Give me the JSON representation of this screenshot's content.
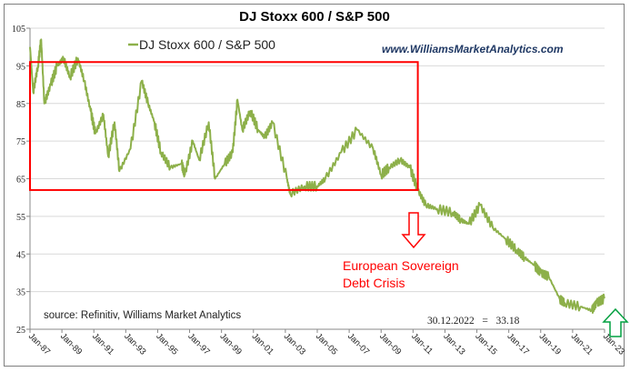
{
  "chart_data": {
    "type": "line",
    "title": "DJ Stoxx 600 / S&P 500",
    "xlabel": "",
    "ylabel": "",
    "ylim": [
      25,
      105
    ],
    "xlim": [
      1987.0,
      2023.0
    ],
    "grid": true,
    "legend": {
      "position": "top-left",
      "entries": [
        "DJ Stoxx 600 / S&P 500"
      ]
    },
    "yticks": [
      25,
      35,
      45,
      55,
      65,
      75,
      85,
      95,
      105
    ],
    "xticks": [
      {
        "label": "Jan-87",
        "value": 1987
      },
      {
        "label": "Jan-89",
        "value": 1989
      },
      {
        "label": "Jan-91",
        "value": 1991
      },
      {
        "label": "Jan-93",
        "value": 1993
      },
      {
        "label": "Jan-95",
        "value": 1995
      },
      {
        "label": "Jan-97",
        "value": 1997
      },
      {
        "label": "Jan-99",
        "value": 1999
      },
      {
        "label": "Jan-01",
        "value": 2001
      },
      {
        "label": "Jan-03",
        "value": 2003
      },
      {
        "label": "Jan-05",
        "value": 2005
      },
      {
        "label": "Jan-07",
        "value": 2007
      },
      {
        "label": "Jan-09",
        "value": 2009
      },
      {
        "label": "Jan-11",
        "value": 2011
      },
      {
        "label": "Jan-13",
        "value": 2013
      },
      {
        "label": "Jan-15",
        "value": 2015
      },
      {
        "label": "Jan-17",
        "value": 2017
      },
      {
        "label": "Jan-19",
        "value": 2019
      },
      {
        "label": "Jan-21",
        "value": 2021
      },
      {
        "label": "Jan-23",
        "value": 2023
      }
    ],
    "series": [
      {
        "name": "DJ Stoxx 600 / S&P 500",
        "color": "#8db04a",
        "x": [
          1987.0,
          1987.2,
          1987.5,
          1987.7,
          1987.9,
          1988.3,
          1988.7,
          1989.1,
          1989.5,
          1990.0,
          1990.4,
          1990.8,
          1991.1,
          1991.6,
          1991.9,
          1992.3,
          1992.6,
          1993.3,
          1994.0,
          1994.4,
          1994.8,
          1995.2,
          1995.8,
          1996.5,
          1996.7,
          1997.2,
          1997.6,
          1998.2,
          1998.6,
          1999.2,
          1999.7,
          2000.0,
          2000.3,
          2000.8,
          2001.3,
          2001.7,
          2002.2,
          2003.1,
          2003.3,
          2004.2,
          2005.0,
          2005.5,
          2006.5,
          2007.5,
          2008.5,
          2009.0,
          2009.5,
          2010.2,
          2010.8,
          2011.3,
          2011.8,
          2012.5,
          2013.5,
          2014.0,
          2014.5,
          2015.2,
          2016.0,
          2016.8,
          2017.5,
          2018.0,
          2018.6,
          2019.0,
          2019.5,
          2020.2,
          2020.5,
          2021.5,
          2022.2,
          2022.5,
          2022.99
        ],
        "values": [
          100,
          88,
          95,
          102,
          85,
          90,
          95,
          97,
          92,
          97,
          91,
          83,
          77,
          82,
          71,
          80,
          67,
          73,
          91,
          85,
          80,
          72,
          68,
          69,
          66,
          75,
          70,
          80,
          65,
          69,
          72,
          86,
          78,
          83,
          78,
          76,
          80,
          65,
          61,
          63,
          63,
          65,
          72,
          78,
          73,
          66,
          68,
          70,
          68,
          62,
          58,
          57,
          56,
          54,
          53,
          58,
          52,
          49,
          46,
          44,
          42,
          40,
          39,
          33,
          32,
          31,
          30,
          32,
          33.18
        ]
      }
    ],
    "annotations": {
      "url": "www.WilliamsMarketAnalytics.com",
      "crisis_line1": "European Sovereign",
      "crisis_line2": "Debt Crisis",
      "source": "source: Refinitiv, Williams Market Analytics",
      "last_value": "30.12.2022   =   33.18",
      "range_box": {
        "x_from": 1987.0,
        "x_to": 2011.3,
        "y_from": 62,
        "y_to": 96,
        "color": "#ff0000"
      },
      "down_arrow_color": "#ff0000",
      "up_arrow_color": "#00a040"
    }
  }
}
